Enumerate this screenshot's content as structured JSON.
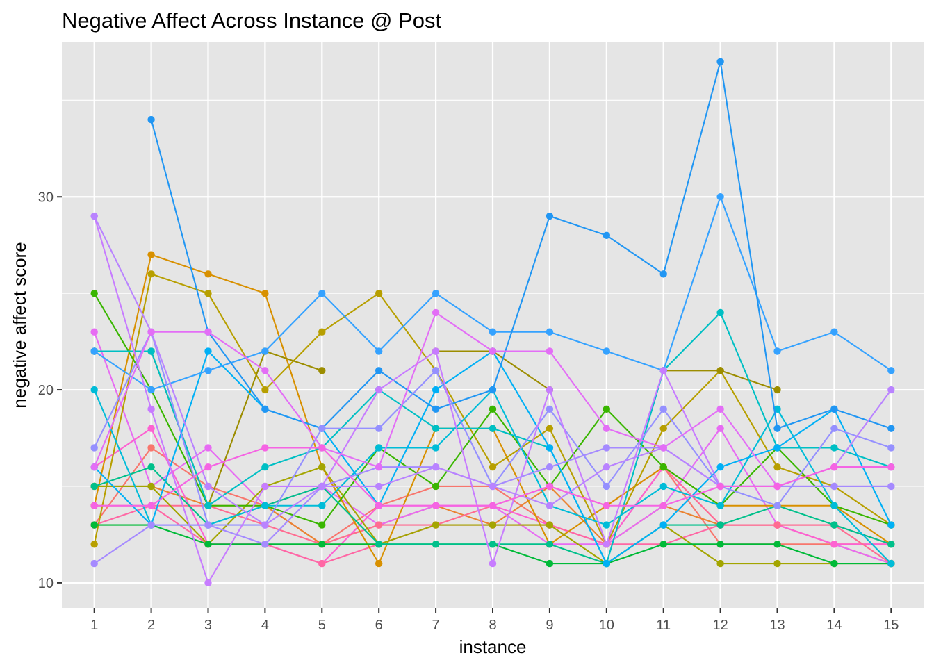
{
  "chart_data": {
    "type": "line",
    "title": "Negative Affect Across Instance  @ Post",
    "xlabel": "instance",
    "ylabel": "negative affect score",
    "x": [
      1,
      2,
      3,
      4,
      5,
      6,
      7,
      8,
      9,
      10,
      11,
      12,
      13,
      14,
      15
    ],
    "x_tick_labels": [
      "1",
      "2",
      "3",
      "4",
      "5",
      "6",
      "7",
      "8",
      "9",
      "10",
      "11",
      "12",
      "13",
      "14",
      "15"
    ],
    "y_ticks": [
      10,
      20,
      30
    ],
    "y_tick_labels": [
      "10",
      "20",
      "30"
    ],
    "xlim": [
      0.43,
      15.57
    ],
    "ylim": [
      8.7,
      38.0
    ],
    "grid": true,
    "legend": "none",
    "panel_background": "#e5e5e5",
    "grid_color": "#ffffff",
    "series": [
      {
        "color": "#f8766d",
        "values": [
          13,
          17,
          15,
          14,
          12,
          14,
          15,
          15,
          13,
          12,
          16,
          12,
          12,
          12,
          12
        ]
      },
      {
        "color": "#ea8331",
        "values": [
          15,
          15,
          14,
          14,
          12,
          13,
          14,
          13,
          15,
          12,
          14,
          13,
          13,
          12,
          11
        ]
      },
      {
        "color": "#e76bf3",
        "values": [
          23,
          15,
          17,
          14,
          15,
          13,
          14,
          14,
          12,
          12,
          14,
          18,
          13,
          12,
          11
        ]
      },
      {
        "color": "#fd61d1",
        "values": [
          16,
          18,
          12,
          12,
          11,
          14,
          14,
          14,
          13,
          12,
          16,
          13,
          13,
          12,
          12
        ]
      },
      {
        "color": "#ff67a4",
        "values": [
          13,
          14,
          12,
          12,
          11,
          12,
          13,
          13,
          13,
          12,
          12,
          13,
          13,
          13,
          12
        ]
      },
      {
        "color": "#ff6c91",
        "values": [
          14,
          14,
          14,
          13,
          12,
          13,
          13,
          14,
          15,
          14,
          16,
          13,
          13,
          13,
          11
        ]
      },
      {
        "color": "#d89000",
        "values": [
          14,
          27,
          26,
          25,
          16,
          11,
          18,
          18,
          12,
          14,
          16,
          14,
          14,
          14,
          12
        ]
      },
      {
        "color": "#b79f00",
        "values": [
          12,
          26,
          25,
          20,
          23,
          25,
          21,
          16,
          18,
          12,
          18,
          21,
          16,
          15,
          13
        ]
      },
      {
        "color": "#a3a500",
        "values": [
          15,
          15,
          12,
          15,
          16,
          12,
          13,
          13,
          13,
          11,
          13,
          11,
          11,
          11,
          11
        ]
      },
      {
        "color": "#9c8d00",
        "values": [
          22,
          22,
          14,
          22,
          21,
          null,
          22,
          22,
          20,
          null,
          21,
          21,
          20,
          null,
          null
        ]
      },
      {
        "color": "#39b600",
        "values": [
          25,
          20,
          14,
          14,
          13,
          17,
          15,
          19,
          15,
          19,
          16,
          14,
          17,
          14,
          13
        ]
      },
      {
        "color": "#00ba38",
        "values": [
          13,
          13,
          12,
          12,
          12,
          12,
          12,
          12,
          11,
          11,
          12,
          12,
          12,
          11,
          11
        ]
      },
      {
        "color": "#00bfc4",
        "values": [
          22,
          22,
          14,
          16,
          17,
          20,
          18,
          18,
          17,
          11,
          21,
          24,
          17,
          17,
          16
        ]
      },
      {
        "color": "#00c08b",
        "values": [
          15,
          16,
          13,
          14,
          15,
          12,
          12,
          12,
          12,
          11,
          13,
          13,
          14,
          13,
          12
        ]
      },
      {
        "color": "#00bcd8",
        "values": [
          20,
          13,
          13,
          14,
          14,
          17,
          17,
          20,
          14,
          13,
          15,
          14,
          19,
          14,
          11
        ]
      },
      {
        "color": "#00b0f6",
        "values": [
          16,
          13,
          22,
          19,
          18,
          14,
          20,
          22,
          17,
          11,
          13,
          16,
          17,
          19,
          13
        ]
      },
      {
        "color": "#35a2ff",
        "values": [
          22,
          20,
          21,
          22,
          25,
          22,
          25,
          23,
          23,
          22,
          21,
          30,
          22,
          23,
          21
        ]
      },
      {
        "color": "#2196f3",
        "values": [
          null,
          34,
          23,
          19,
          18,
          21,
          19,
          20,
          29,
          28,
          26,
          37,
          18,
          19,
          18
        ]
      },
      {
        "color": "#9590ff",
        "values": [
          17,
          23,
          13,
          13,
          18,
          18,
          21,
          15,
          19,
          15,
          19,
          15,
          14,
          18,
          17
        ]
      },
      {
        "color": "#c77cff",
        "values": [
          29,
          19,
          10,
          15,
          15,
          20,
          22,
          11,
          20,
          12,
          21,
          15,
          15,
          15,
          15
        ]
      },
      {
        "color": "#a58aff",
        "values": [
          11,
          13,
          13,
          12,
          15,
          16,
          16,
          15,
          16,
          17,
          17,
          15,
          15,
          15,
          15
        ]
      },
      {
        "color": "#b983ff",
        "values": [
          29,
          23,
          15,
          13,
          15,
          15,
          16,
          15,
          14,
          16,
          17,
          15,
          15,
          16,
          20
        ]
      },
      {
        "color": "#e36ef6",
        "values": [
          16,
          23,
          23,
          21,
          17,
          16,
          24,
          22,
          22,
          18,
          17,
          19,
          15,
          16,
          16
        ]
      },
      {
        "color": "#f564e3",
        "values": [
          14,
          14,
          16,
          17,
          17,
          14,
          14,
          14,
          15,
          14,
          14,
          15,
          15,
          16,
          16
        ]
      }
    ]
  }
}
